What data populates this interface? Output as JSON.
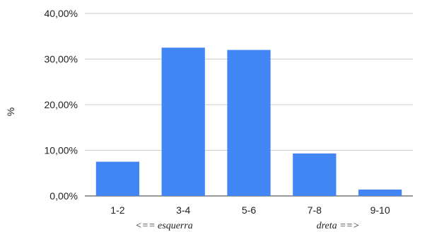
{
  "chart_data": {
    "type": "bar",
    "categories": [
      "1-2",
      "3-4",
      "5-6",
      "7-8",
      "9-10"
    ],
    "values": [
      7.5,
      32.5,
      32.0,
      9.3,
      1.4
    ],
    "ylabel": "%",
    "ylim": [
      0,
      40
    ],
    "yticks": [
      0,
      10,
      20,
      30,
      40
    ],
    "ytick_labels": [
      "0,00%",
      "10,00%",
      "20,00%",
      "30,00%",
      "40,00%"
    ],
    "grid": true,
    "bar_color": "#4285F4",
    "annotations": [
      "<== esquerra",
      "dreta ==>"
    ]
  }
}
